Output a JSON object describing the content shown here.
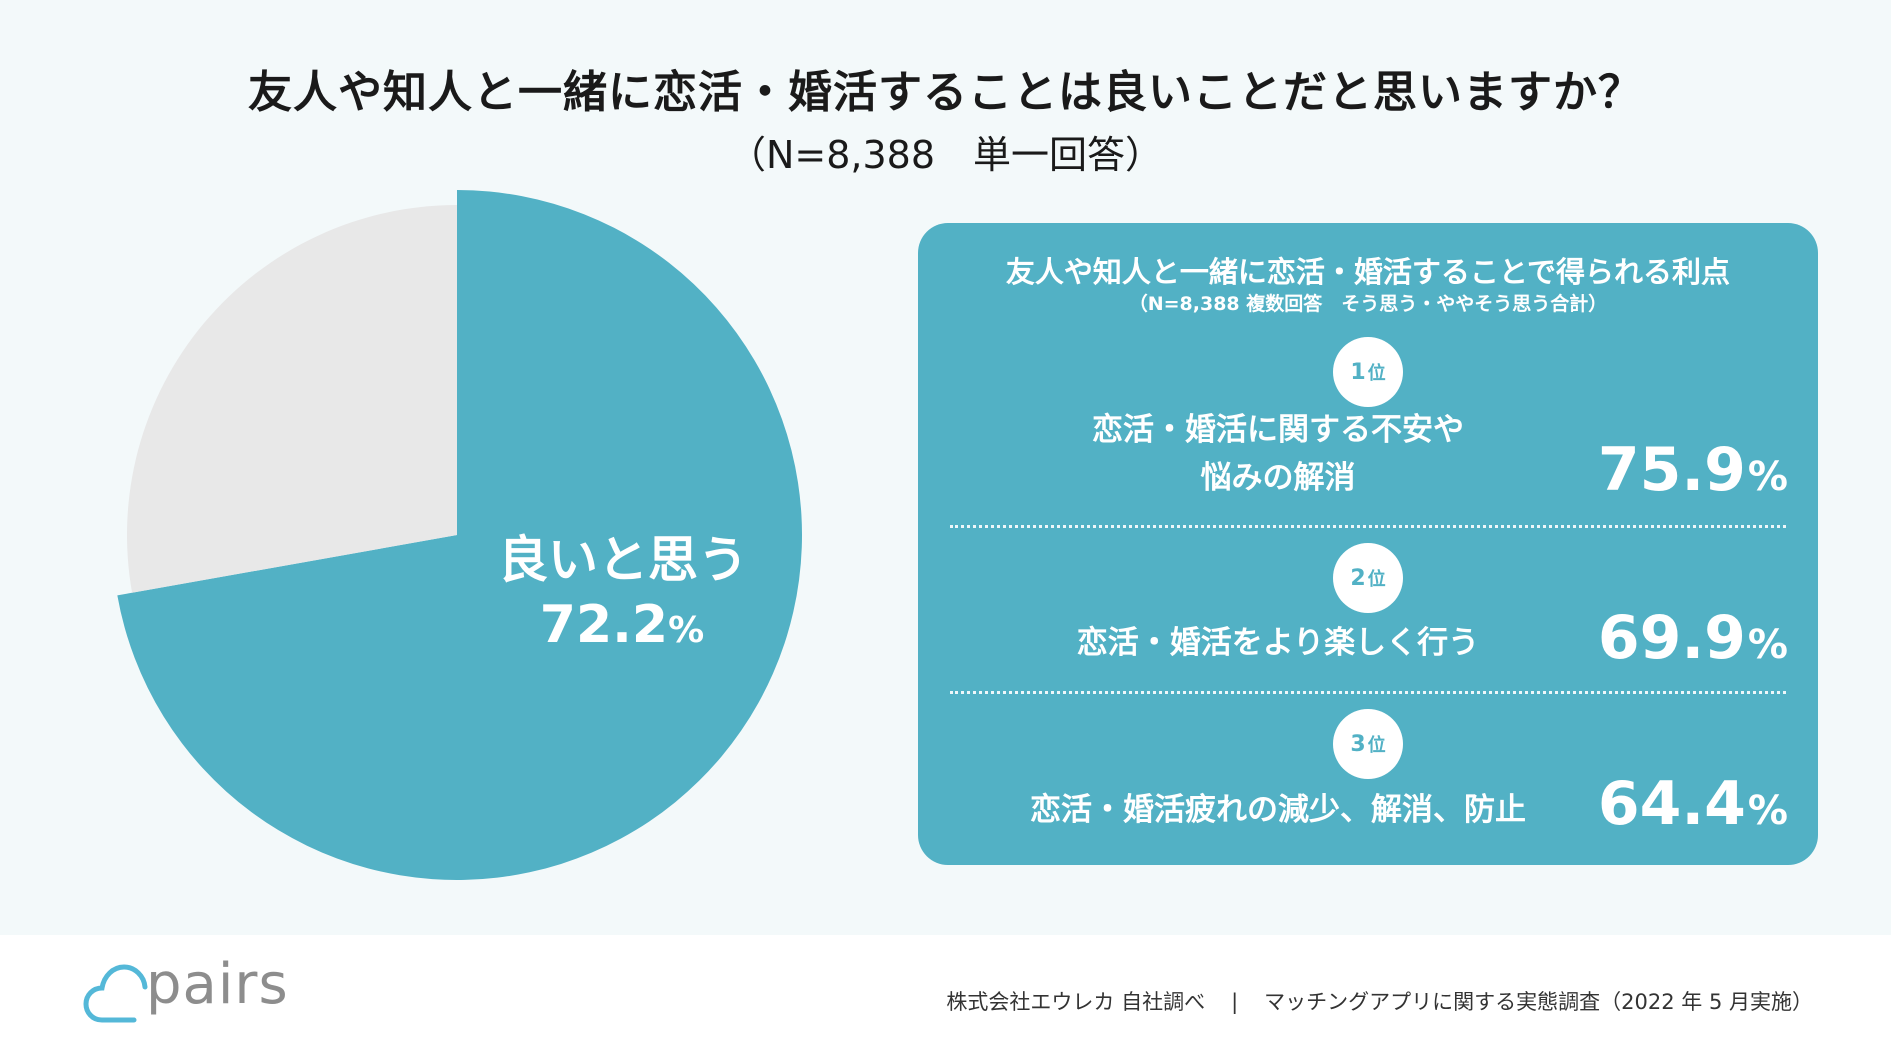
{
  "header": {
    "title": "友人や知人と一緒に恋活・婚活することは良いことだと思いますか？",
    "subtitle": "（N=8,388　単一回答）"
  },
  "chart_data": {
    "type": "pie",
    "slices": [
      {
        "label": "良いと思う",
        "value": 72.2,
        "unit": "%",
        "color": "#52b1c5"
      },
      {
        "label": "",
        "value": 27.8,
        "color": "#e8e8e8"
      }
    ]
  },
  "panel": {
    "title": "友人や知人と一緒に恋活・婚活することで得られる利点",
    "note": "（N=8,388 複数回答　そう思う・ややそう思う合計）",
    "items": [
      {
        "rank": "1",
        "rank_unit": "位",
        "label_line1": "恋活・婚活に関する不安や",
        "label_line2": "悩みの解消",
        "value": "75.9",
        "unit": "%"
      },
      {
        "rank": "2",
        "rank_unit": "位",
        "label_line1": "恋活・婚活をより楽しく行う",
        "value": "69.9",
        "unit": "%"
      },
      {
        "rank": "3",
        "rank_unit": "位",
        "label_line1": "恋活・婚活疲れの減少、解消、防止",
        "value": "64.4",
        "unit": "%"
      }
    ]
  },
  "footer": {
    "logo_text": "pairs",
    "source": "株式会社エウレカ 自社調べ",
    "separator": "|",
    "survey": "マッチングアプリに関する実態調査（2022 年 5 月実施）"
  },
  "colors": {
    "accent": "#52b1c5",
    "remainder": "#e8e8e8",
    "background": "#f3f9fa"
  }
}
